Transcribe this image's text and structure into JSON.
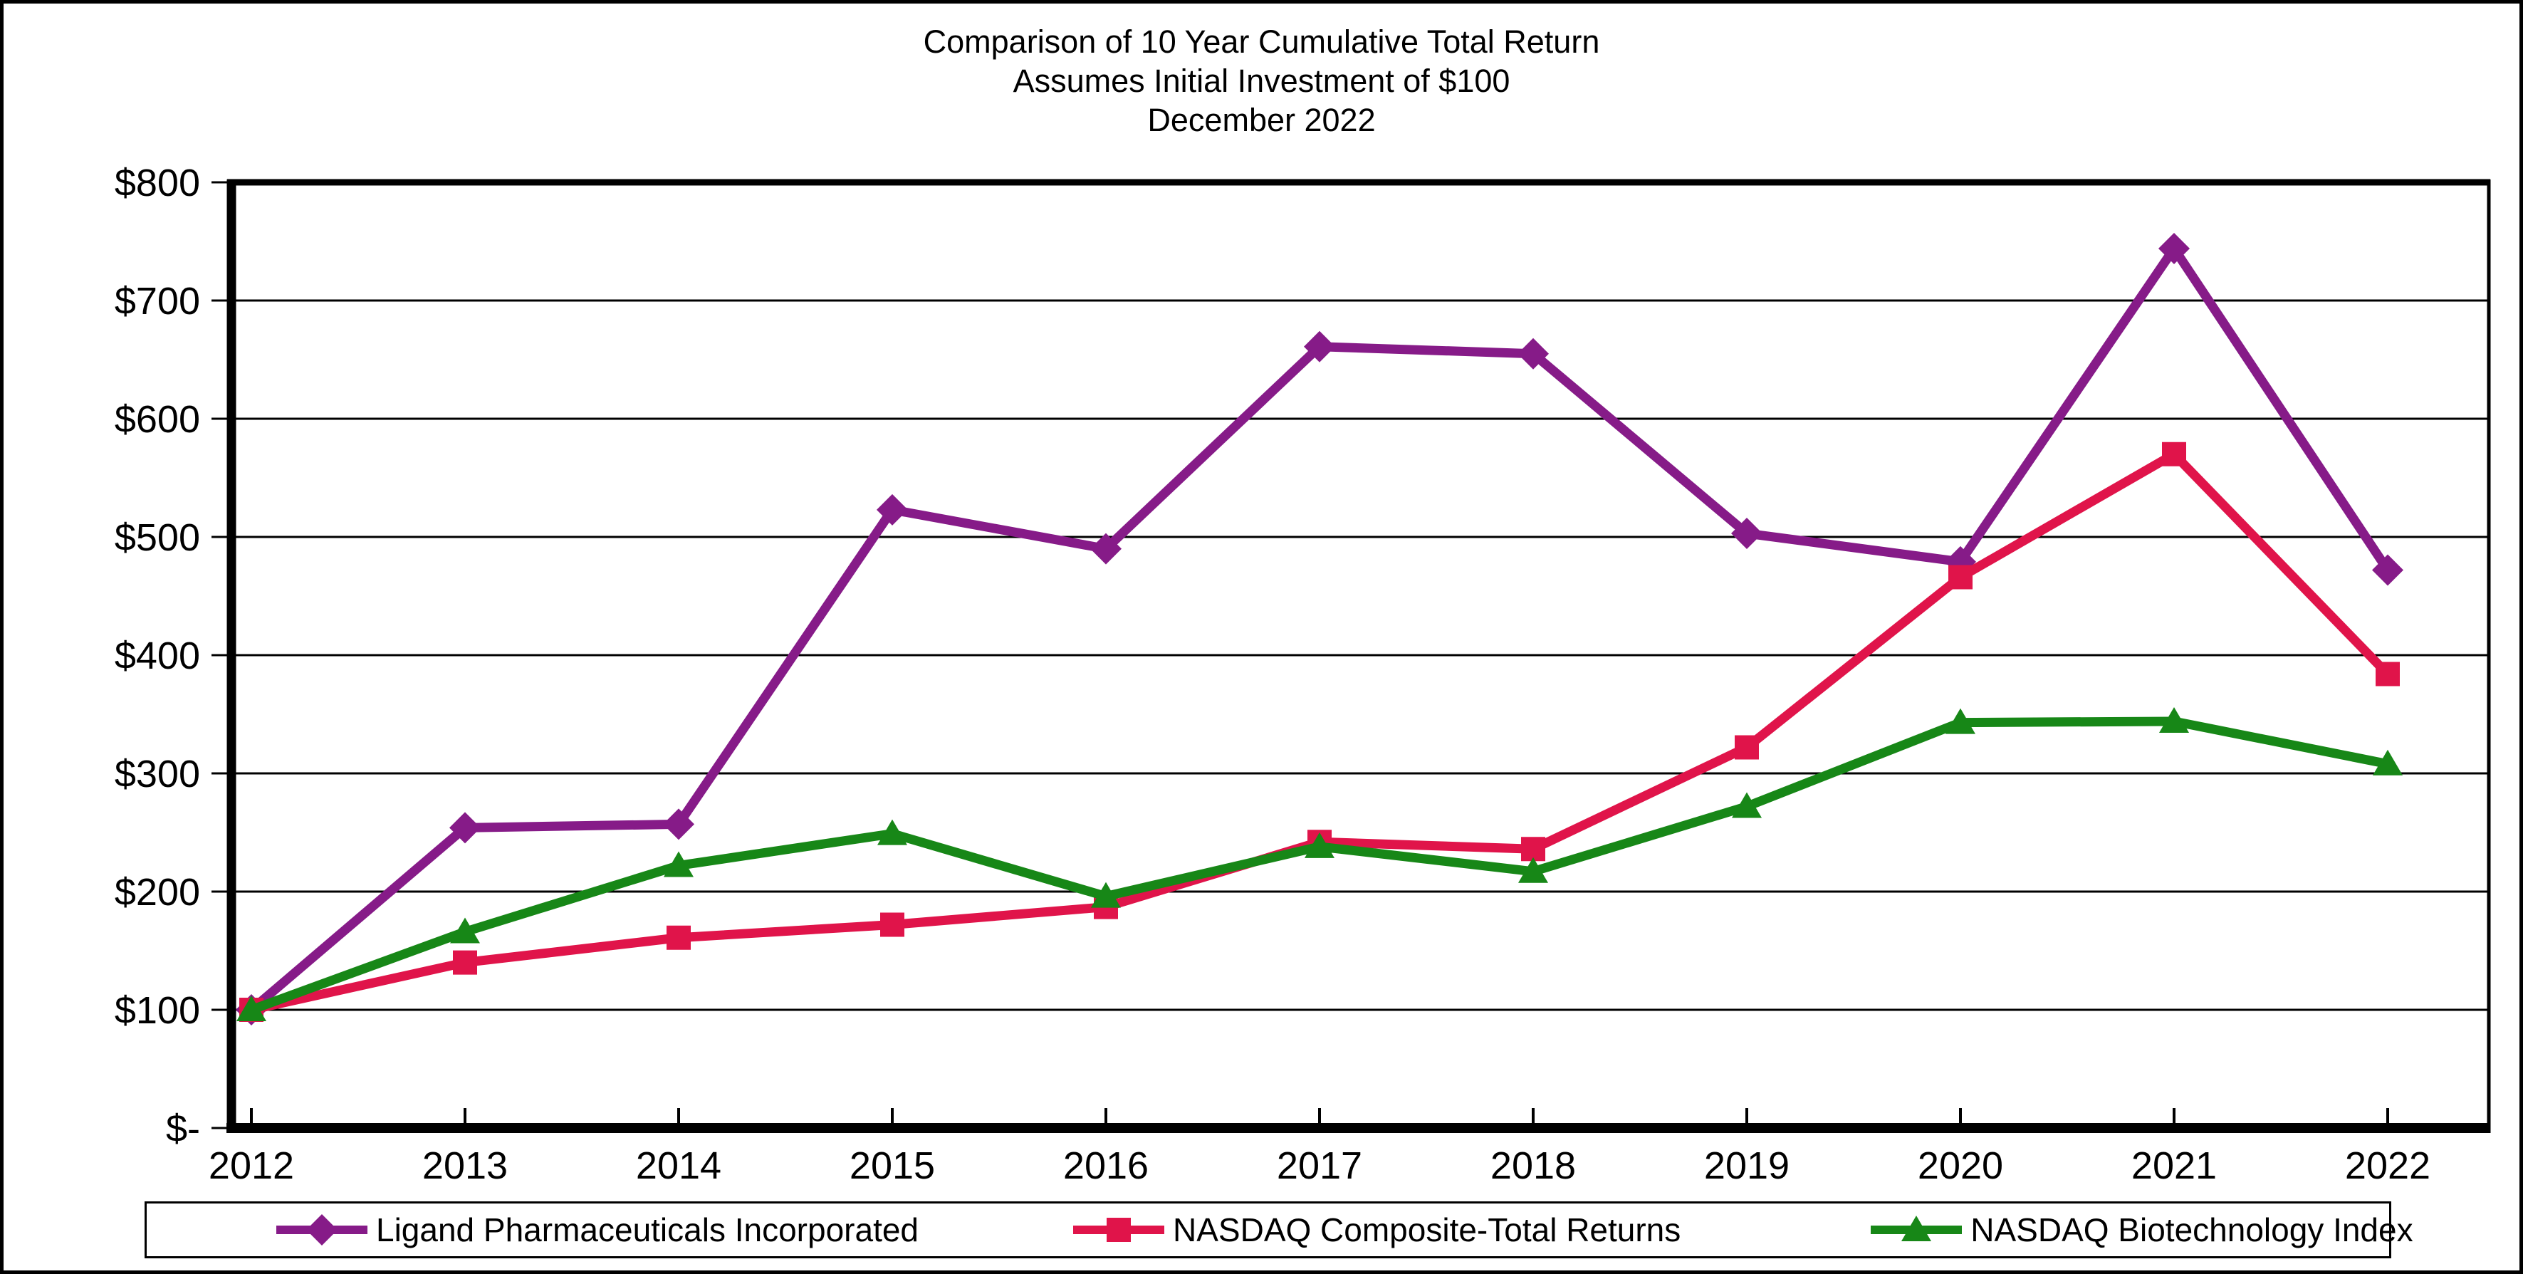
{
  "chart_data": {
    "type": "line",
    "title_lines": [
      "Comparison of 10 Year Cumulative Total Return",
      "Assumes Initial Investment of $100",
      "December 2022"
    ],
    "categories": [
      "2012",
      "2013",
      "2014",
      "2015",
      "2016",
      "2017",
      "2018",
      "2019",
      "2020",
      "2021",
      "2022"
    ],
    "xlabel": "",
    "ylabel": "",
    "ylim": [
      0,
      800
    ],
    "ytick_step": 100,
    "yticks": [
      {
        "value": 800,
        "label": "$800"
      },
      {
        "value": 700,
        "label": "$700"
      },
      {
        "value": 600,
        "label": "$600"
      },
      {
        "value": 500,
        "label": "$500"
      },
      {
        "value": 400,
        "label": "$400"
      },
      {
        "value": 300,
        "label": "$300"
      },
      {
        "value": 200,
        "label": "$200"
      },
      {
        "value": 100,
        "label": "$100"
      },
      {
        "value": 0,
        "label": "$-"
      }
    ],
    "grid": "horizontal",
    "legend_position": "bottom",
    "colors": {
      "background": "#ffffff",
      "axis": "#000000",
      "grid": "#000000",
      "border": "#000000"
    },
    "series": [
      {
        "name": "Ligand Pharmaceuticals Incorporated",
        "color": "#861B88",
        "marker": "diamond",
        "values": [
          100,
          254,
          257,
          523,
          490,
          661,
          655,
          503,
          479,
          744,
          472
        ]
      },
      {
        "name": "NASDAQ Composite-Total Returns",
        "color": "#E0144A",
        "marker": "square",
        "values": [
          100,
          140,
          161,
          172,
          187,
          242,
          236,
          322,
          466,
          570,
          384
        ]
      },
      {
        "name": "NASDAQ Biotechnology Index",
        "color": "#178717",
        "marker": "triangle",
        "values": [
          100,
          166,
          222,
          249,
          196,
          238,
          217,
          272,
          343,
          344,
          308
        ]
      }
    ]
  }
}
